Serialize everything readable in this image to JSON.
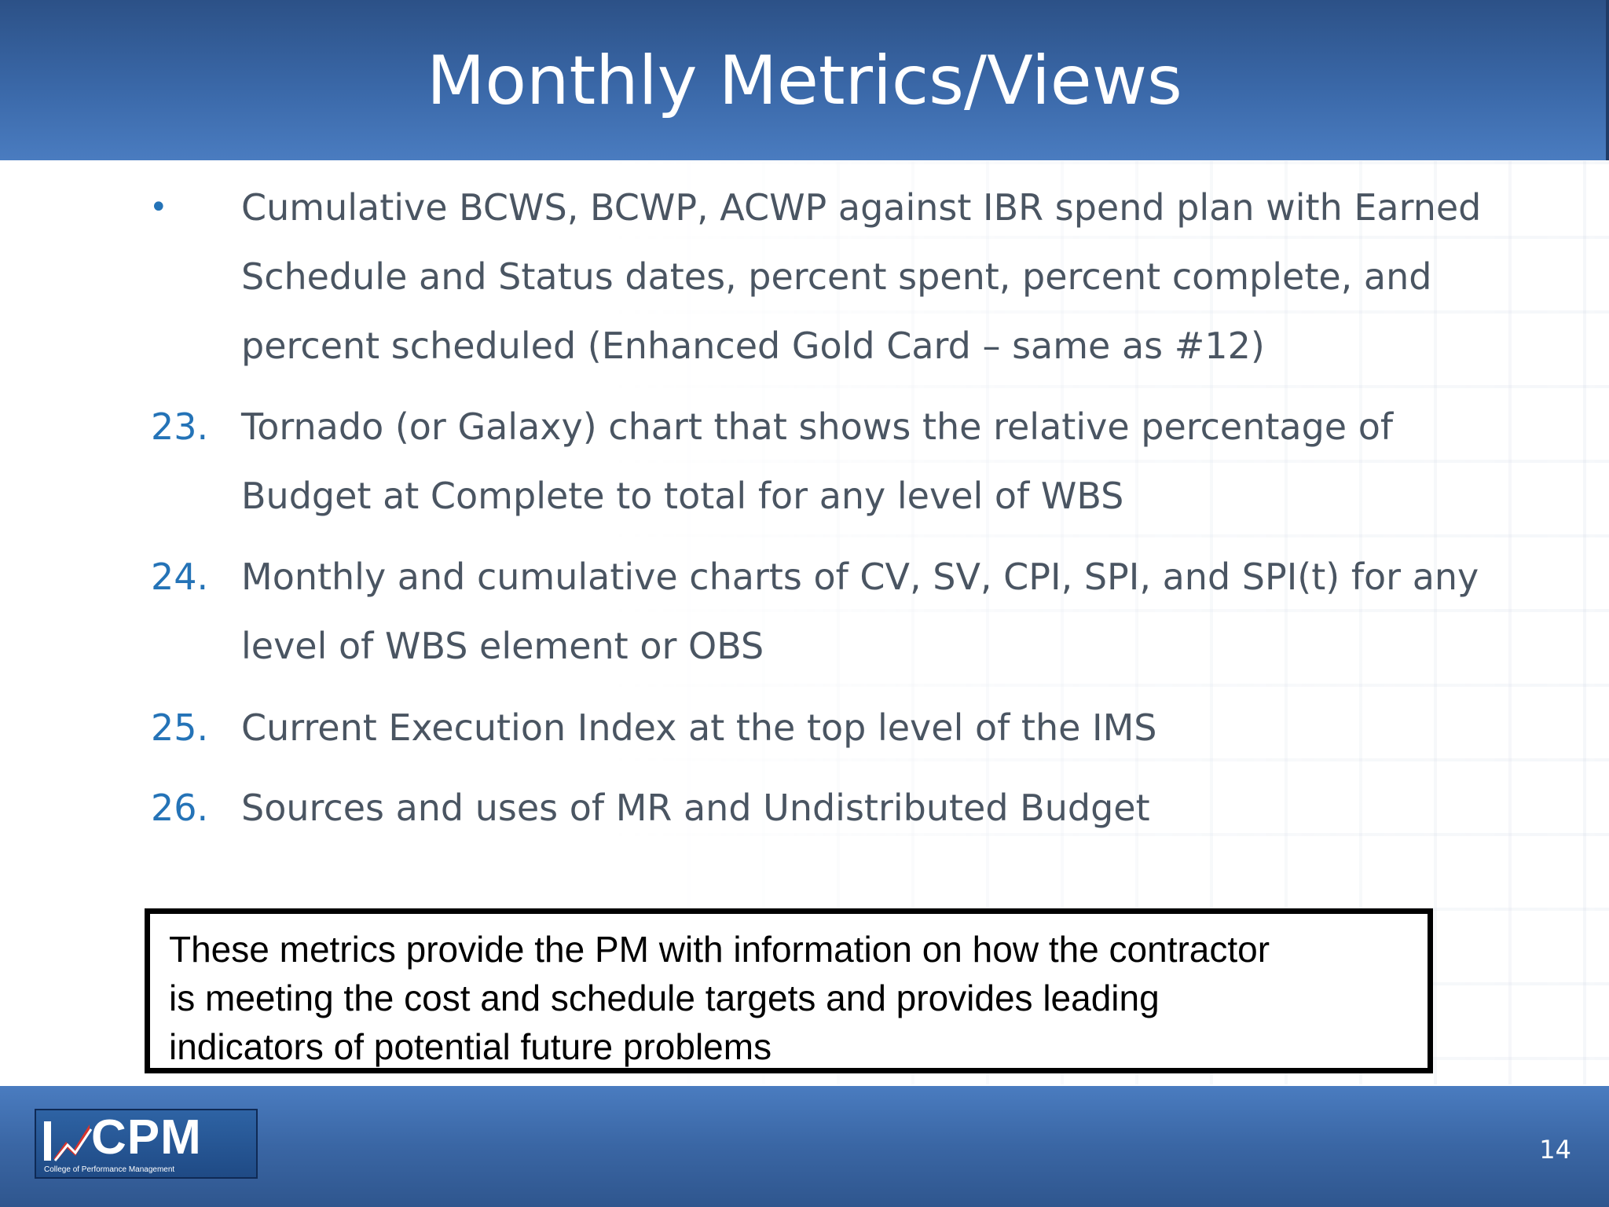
{
  "slide": {
    "title": "Monthly Metrics/Views",
    "page_number": "14"
  },
  "items": [
    {
      "marker": "•",
      "lines": [
        "Cumulative BCWS, BCWP, ACWP against IBR spend plan with Earned",
        "Schedule and Status dates, percent spent, percent complete, and",
        "percent scheduled (Enhanced Gold Card – same as #12)"
      ]
    },
    {
      "marker": "23.",
      "lines": [
        "Tornado (or Galaxy) chart that shows the relative percentage of",
        "Budget at Complete to total for any level of WBS"
      ]
    },
    {
      "marker": "24.",
      "lines": [
        "Monthly and cumulative charts of CV, SV, CPI, SPI, and SPI(t) for any",
        "level of WBS element or OBS"
      ]
    },
    {
      "marker": "25.",
      "lines": [
        "Current Execution Index at the top level of the IMS"
      ]
    },
    {
      "marker": "26.",
      "lines": [
        "Sources and uses of MR and Undistributed Budget"
      ]
    }
  ],
  "callout": {
    "lines": [
      "These metrics provide the PM with information on how the contractor",
      "is meeting the cost and schedule targets and provides leading",
      "indicators of potential future problems"
    ]
  },
  "logo": {
    "letters": "CPM",
    "subtitle": "College of Performance Management"
  },
  "colors": {
    "header": "#3a68a8",
    "footer": "#3a66a4",
    "marker": "#2473b7",
    "body_text": "#4a5562"
  }
}
